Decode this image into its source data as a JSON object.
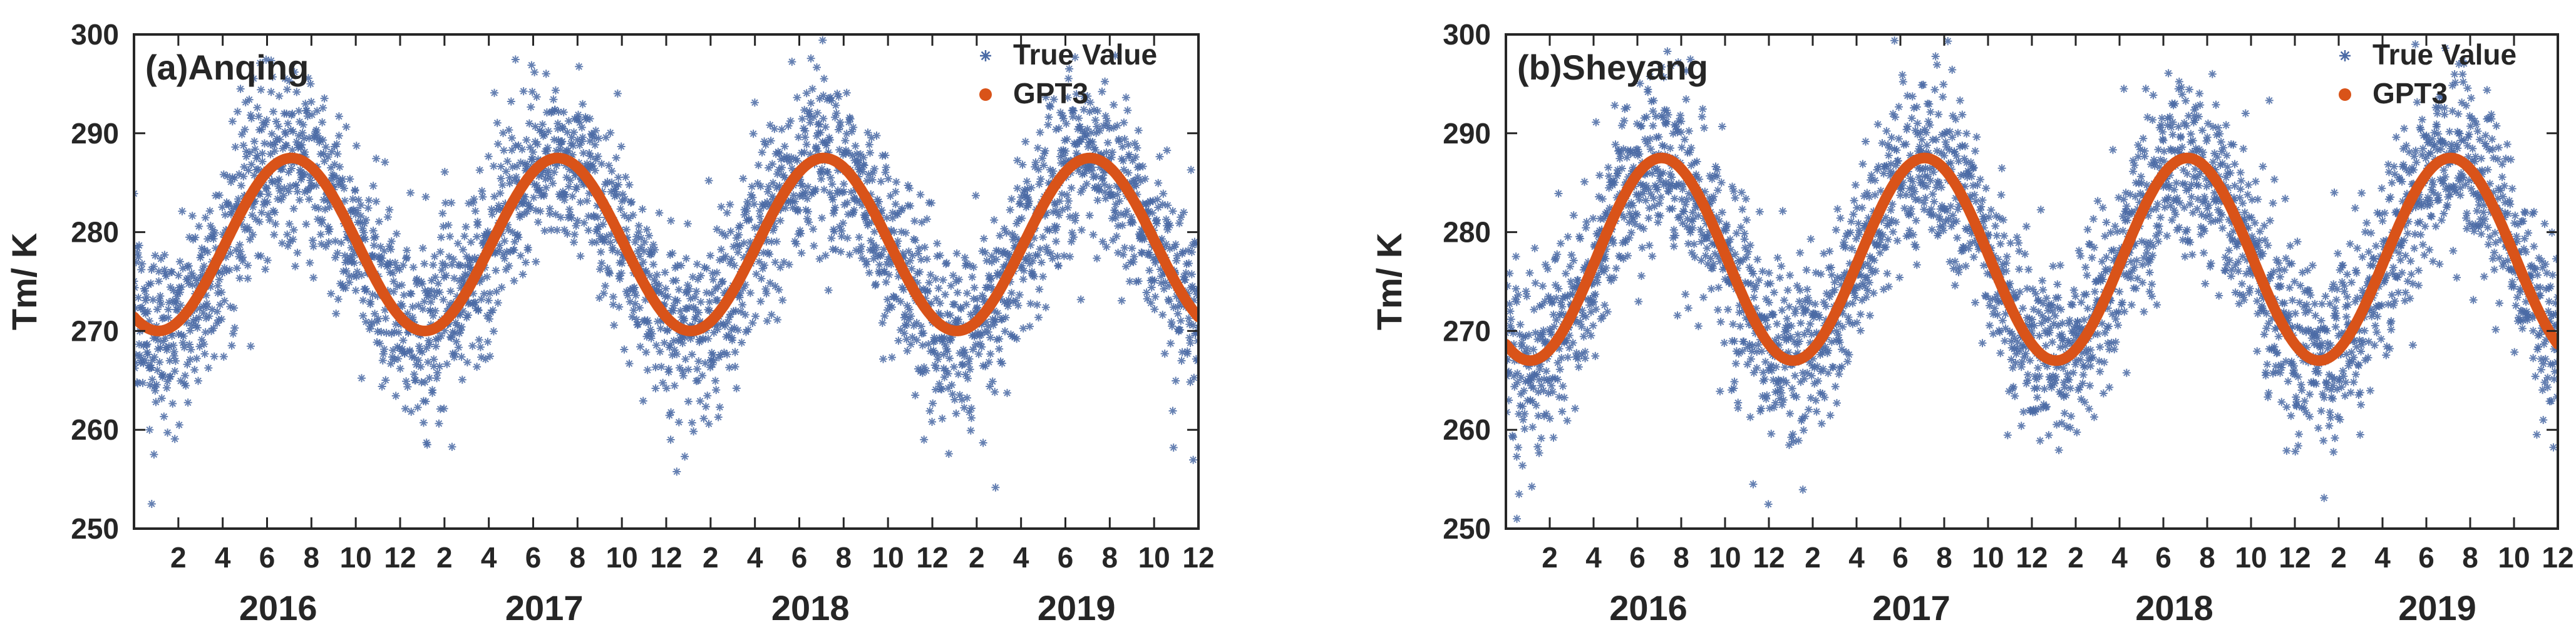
{
  "chart_data": [
    {
      "type": "scatter",
      "panel_label": "(a)Anqing",
      "ylabel": "Tm/ K",
      "xlabel": "",
      "ylim": [
        250,
        300
      ],
      "yticks": [
        250,
        260,
        270,
        280,
        290,
        300
      ],
      "month_ticks": [
        2,
        4,
        6,
        8,
        10,
        12
      ],
      "years": [
        "2016",
        "2017",
        "2018",
        "2019"
      ],
      "legend": {
        "position": "top-right",
        "entries": [
          "True Value",
          "GPT3"
        ]
      },
      "model": {
        "name": "GPT3",
        "min": 270,
        "max": 287.5,
        "peak_month": 7.1
      },
      "observations": {
        "name": "True Value",
        "noise": 4.5
      },
      "outliers": [
        {
          "month": 0.8,
          "value": 252.5
        },
        {
          "month": 0.9,
          "value": 257.5
        },
        {
          "month": 0.7,
          "value": 260
        },
        {
          "month": 24.2,
          "value": 259
        },
        {
          "month": 29.8,
          "value": 286
        }
      ]
    },
    {
      "type": "scatter",
      "panel_label": "(b)Sheyang",
      "ylabel": "Tm/ K",
      "xlabel": "",
      "ylim": [
        250,
        300
      ],
      "yticks": [
        250,
        260,
        270,
        280,
        290,
        300
      ],
      "month_ticks": [
        2,
        4,
        6,
        8,
        10,
        12
      ],
      "years": [
        "2016",
        "2017",
        "2018",
        "2019"
      ],
      "legend": {
        "position": "top-right",
        "entries": [
          "True Value",
          "GPT3"
        ]
      },
      "model": {
        "name": "GPT3",
        "min": 267,
        "max": 287.5,
        "peak_month": 7.1
      },
      "observations": {
        "name": "True Value",
        "noise": 4.5
      },
      "outliers": [
        {
          "month": 0.5,
          "value": 251
        },
        {
          "month": 0.6,
          "value": 253.5
        },
        {
          "month": 28.2,
          "value": 294.5
        },
        {
          "month": 29.2,
          "value": 294.5
        },
        {
          "month": 41.5,
          "value": 299
        },
        {
          "month": 42.5,
          "value": 292
        },
        {
          "month": 37.8,
          "value": 284
        }
      ]
    }
  ]
}
